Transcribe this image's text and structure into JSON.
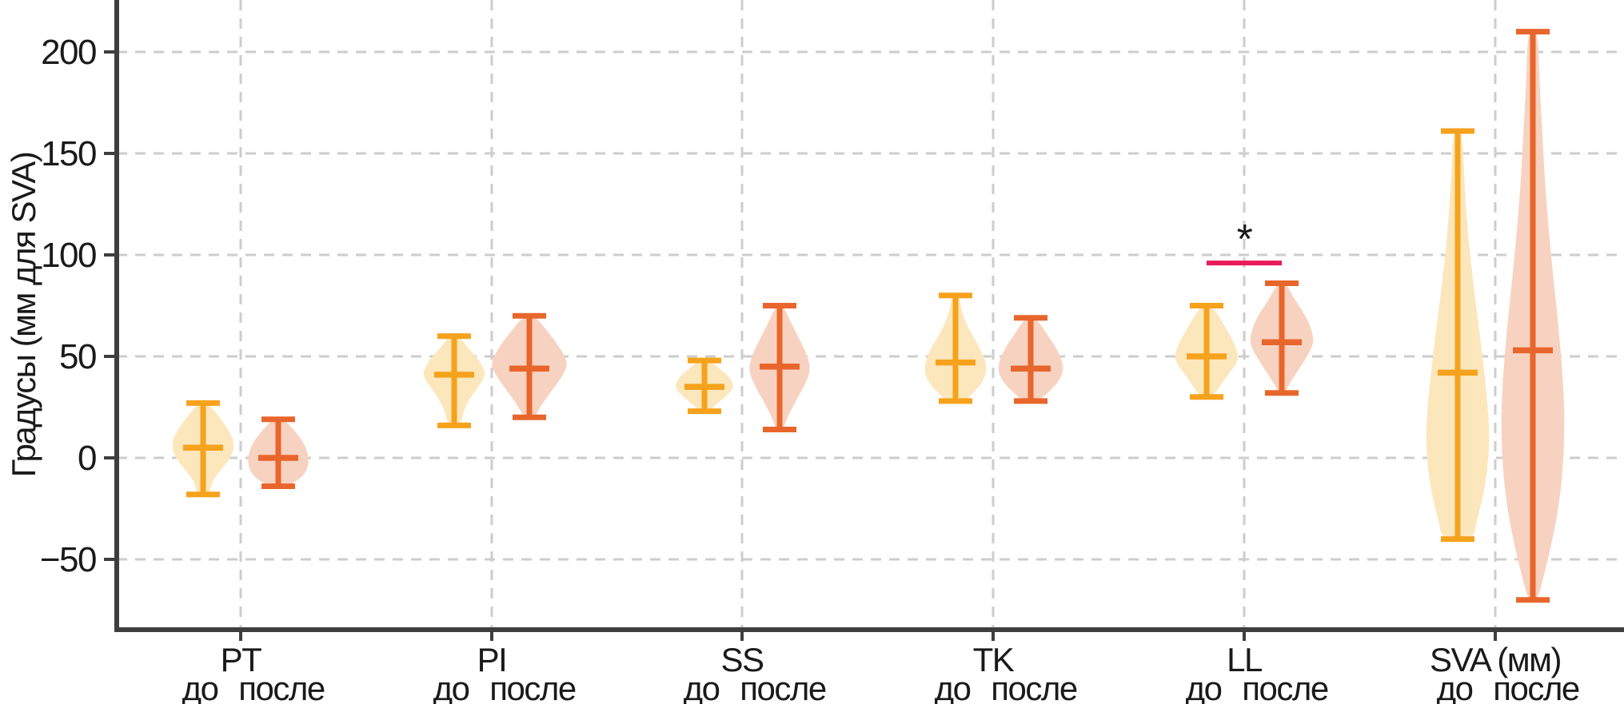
{
  "figure": {
    "ylabel": "Градусы (мм для SVA)"
  },
  "chart_data": {
    "type": "violin",
    "title": "",
    "xlabel": "",
    "ylabel": "Градусы (мм для SVA)",
    "y_ticks": [
      200,
      150,
      100,
      50,
      0,
      -50
    ],
    "ylim": [
      -85,
      226
    ],
    "grid": "dashed horizontal at ticks and vertical at group centers",
    "legend_position": "none",
    "series_names": [
      "до",
      "после"
    ],
    "groups": [
      {
        "label": "PT",
        "series": [
          {
            "name": "до",
            "whisker_high": 27,
            "median": 5,
            "whisker_low": -18,
            "max_halfwidth": 39,
            "density_profile": [
              [
                27,
                0.16
              ],
              [
                22,
                0.42
              ],
              [
                16,
                0.72
              ],
              [
                10,
                0.95
              ],
              [
                5,
                1.0
              ],
              [
                0,
                0.88
              ],
              [
                -5,
                0.62
              ],
              [
                -10,
                0.36
              ],
              [
                -14,
                0.24
              ],
              [
                -18,
                0.2
              ]
            ]
          },
          {
            "name": "после",
            "whisker_high": 19,
            "median": 0,
            "whisker_low": -14,
            "max_halfwidth": 38,
            "density_profile": [
              [
                19,
                0.18
              ],
              [
                14,
                0.5
              ],
              [
                8,
                0.82
              ],
              [
                2,
                0.98
              ],
              [
                -3,
                1.0
              ],
              [
                -8,
                0.88
              ],
              [
                -12,
                0.55
              ],
              [
                -14,
                0.25
              ]
            ]
          }
        ]
      },
      {
        "label": "PI",
        "series": [
          {
            "name": "до",
            "whisker_high": 60,
            "median": 41,
            "whisker_low": 16,
            "max_halfwidth": 39,
            "density_profile": [
              [
                60,
                0.16
              ],
              [
                55,
                0.4
              ],
              [
                49,
                0.75
              ],
              [
                44,
                0.96
              ],
              [
                40,
                1.0
              ],
              [
                34,
                0.72
              ],
              [
                28,
                0.45
              ],
              [
                22,
                0.28
              ],
              [
                16,
                0.2
              ]
            ]
          },
          {
            "name": "после",
            "whisker_high": 70,
            "median": 44,
            "whisker_low": 20,
            "max_halfwidth": 48,
            "density_profile": [
              [
                70,
                0.14
              ],
              [
                64,
                0.4
              ],
              [
                57,
                0.7
              ],
              [
                50,
                0.93
              ],
              [
                45,
                1.0
              ],
              [
                38,
                0.78
              ],
              [
                31,
                0.5
              ],
              [
                25,
                0.28
              ],
              [
                20,
                0.14
              ]
            ]
          }
        ]
      },
      {
        "label": "SS",
        "series": [
          {
            "name": "до",
            "whisker_high": 48,
            "median": 35,
            "whisker_low": 23,
            "max_halfwidth": 38,
            "density_profile": [
              [
                48,
                0.18
              ],
              [
                44,
                0.5
              ],
              [
                40,
                0.82
              ],
              [
                35,
                1.0
              ],
              [
                30,
                0.7
              ],
              [
                26,
                0.35
              ],
              [
                23,
                0.18
              ]
            ]
          },
          {
            "name": "после",
            "whisker_high": 75,
            "median": 45,
            "whisker_low": 14,
            "max_halfwidth": 39,
            "density_profile": [
              [
                75,
                0.12
              ],
              [
                67,
                0.35
              ],
              [
                58,
                0.65
              ],
              [
                50,
                0.9
              ],
              [
                43,
                1.0
              ],
              [
                35,
                0.78
              ],
              [
                27,
                0.48
              ],
              [
                19,
                0.22
              ],
              [
                14,
                0.12
              ]
            ]
          }
        ]
      },
      {
        "label": "TK",
        "series": [
          {
            "name": "до",
            "whisker_high": 80,
            "median": 47,
            "whisker_low": 28,
            "max_halfwidth": 39,
            "density_profile": [
              [
                80,
                0.12
              ],
              [
                72,
                0.2
              ],
              [
                64,
                0.4
              ],
              [
                56,
                0.72
              ],
              [
                48,
                0.96
              ],
              [
                42,
                1.0
              ],
              [
                36,
                0.82
              ],
              [
                31,
                0.5
              ],
              [
                28,
                0.28
              ]
            ]
          },
          {
            "name": "после",
            "whisker_high": 69,
            "median": 44,
            "whisker_low": 28,
            "max_halfwidth": 41,
            "density_profile": [
              [
                69,
                0.16
              ],
              [
                62,
                0.45
              ],
              [
                55,
                0.75
              ],
              [
                48,
                0.96
              ],
              [
                42,
                1.0
              ],
              [
                36,
                0.78
              ],
              [
                31,
                0.45
              ],
              [
                28,
                0.22
              ]
            ]
          }
        ]
      },
      {
        "label": "LL",
        "series": [
          {
            "name": "до",
            "whisker_high": 75,
            "median": 50,
            "whisker_low": 30,
            "max_halfwidth": 40,
            "density_profile": [
              [
                75,
                0.16
              ],
              [
                68,
                0.45
              ],
              [
                60,
                0.75
              ],
              [
                53,
                0.96
              ],
              [
                48,
                1.0
              ],
              [
                42,
                0.72
              ],
              [
                36,
                0.45
              ],
              [
                30,
                0.2
              ]
            ]
          },
          {
            "name": "после",
            "whisker_high": 86,
            "median": 57,
            "whisker_low": 32,
            "max_halfwidth": 40,
            "density_profile": [
              [
                86,
                0.14
              ],
              [
                78,
                0.4
              ],
              [
                70,
                0.75
              ],
              [
                62,
                0.96
              ],
              [
                56,
                1.0
              ],
              [
                48,
                0.72
              ],
              [
                41,
                0.42
              ],
              [
                35,
                0.18
              ],
              [
                32,
                0.12
              ]
            ]
          }
        ]
      },
      {
        "label": "SVA (мм)",
        "series": [
          {
            "name": "до",
            "whisker_high": 161,
            "median": 42,
            "whisker_low": -40,
            "max_halfwidth": 40,
            "density_profile": [
              [
                161,
                0.14
              ],
              [
                140,
                0.2
              ],
              [
                118,
                0.28
              ],
              [
                95,
                0.42
              ],
              [
                72,
                0.6
              ],
              [
                50,
                0.78
              ],
              [
                28,
                0.93
              ],
              [
                10,
                1.0
              ],
              [
                -8,
                0.92
              ],
              [
                -22,
                0.75
              ],
              [
                -32,
                0.58
              ],
              [
                -40,
                0.5
              ]
            ]
          },
          {
            "name": "после",
            "whisker_high": 210,
            "median": 53,
            "whisker_low": -70,
            "max_halfwidth": 40,
            "density_profile": [
              [
                210,
                0.16
              ],
              [
                188,
                0.2
              ],
              [
                165,
                0.28
              ],
              [
                140,
                0.36
              ],
              [
                115,
                0.48
              ],
              [
                90,
                0.63
              ],
              [
                65,
                0.8
              ],
              [
                40,
                0.94
              ],
              [
                15,
                1.0
              ],
              [
                -10,
                0.92
              ],
              [
                -30,
                0.75
              ],
              [
                -48,
                0.5
              ],
              [
                -62,
                0.28
              ],
              [
                -70,
                0.14
              ]
            ]
          }
        ]
      }
    ],
    "significance": {
      "group_label": "LL",
      "marker": "*",
      "bar_value": 96,
      "bar_color": "#EB1A5B",
      "marker_color": "#4A4A4A"
    },
    "colors": {
      "before_stroke": "#F6A21C",
      "before_fill": "#FCE7BD",
      "after_stroke": "#E8662C",
      "after_fill": "#F8D2C0",
      "grid": "#CDCDCD",
      "axis": "#3E3E3E",
      "text": "#1A1A1A"
    }
  }
}
